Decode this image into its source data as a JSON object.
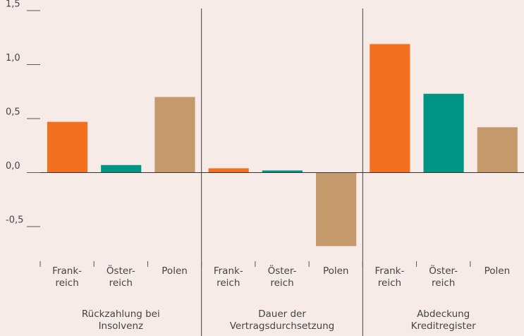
{
  "chart_data": {
    "type": "bar",
    "groups": [
      {
        "label": "Rückzahlung bei\nInsolvenz",
        "bars": [
          {
            "label": "Frank-\nreich",
            "value": 0.47,
            "color": "#f37021"
          },
          {
            "label": "Öster-\nreich",
            "value": 0.07,
            "color": "#009485"
          },
          {
            "label": "Polen",
            "value": 0.7,
            "color": "#c49a6c"
          }
        ]
      },
      {
        "label": "Dauer der\nVertragsdurchsetzung",
        "bars": [
          {
            "label": "Frank-\nreich",
            "value": 0.04,
            "color": "#f37021"
          },
          {
            "label": "Öster-\nreich",
            "value": 0.02,
            "color": "#009485"
          },
          {
            "label": "Polen",
            "value": -0.68,
            "color": "#c49a6c"
          }
        ]
      },
      {
        "label": "Abdeckung\nKreditregister",
        "bars": [
          {
            "label": "Frank-\nreich",
            "value": 1.19,
            "color": "#f37021"
          },
          {
            "label": "Öster-\nreich",
            "value": 0.73,
            "color": "#009485"
          },
          {
            "label": "Polen",
            "value": 0.42,
            "color": "#c49a6c"
          }
        ]
      }
    ],
    "ylim": [
      -0.82,
      1.5
    ],
    "yticks": [
      {
        "value": -0.5,
        "label": "-0,5"
      },
      {
        "value": 0,
        "label": "0,0"
      },
      {
        "value": 0.5,
        "label": "0,5"
      },
      {
        "value": 1,
        "label": "1,0"
      },
      {
        "value": 1.5,
        "label": "1,5"
      }
    ],
    "grid": false
  }
}
